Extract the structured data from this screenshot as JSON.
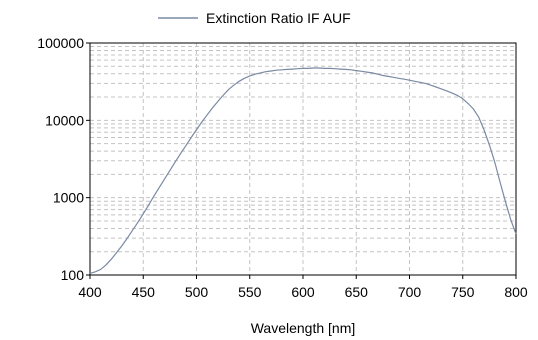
{
  "chart_data": {
    "type": "line",
    "title": "",
    "xlabel": "Wavelength [nm]",
    "ylabel": "",
    "xlim": [
      400,
      800
    ],
    "ylim": [
      100,
      100000
    ],
    "yscale": "log",
    "grid": true,
    "legend_position": "top",
    "x_ticks": [
      "400",
      "450",
      "500",
      "550",
      "600",
      "650",
      "700",
      "750",
      "800"
    ],
    "y_ticks": [
      "100",
      "1000",
      "10000",
      "100000"
    ],
    "series": [
      {
        "name": "Extinction Ratio IF AUF",
        "color": "#7a8aa3",
        "x": [
          400,
          405,
          410,
          415,
          420,
          425,
          430,
          435,
          440,
          445,
          450,
          455,
          460,
          465,
          470,
          475,
          480,
          485,
          490,
          495,
          500,
          505,
          510,
          515,
          520,
          525,
          530,
          535,
          540,
          545,
          550,
          555,
          560,
          565,
          570,
          575,
          580,
          585,
          590,
          595,
          600,
          605,
          610,
          615,
          620,
          625,
          630,
          635,
          640,
          645,
          650,
          655,
          660,
          665,
          670,
          675,
          680,
          685,
          690,
          695,
          700,
          705,
          710,
          715,
          720,
          725,
          730,
          735,
          740,
          745,
          750,
          755,
          760,
          765,
          770,
          775,
          780,
          785,
          790,
          795,
          800
        ],
        "values": [
          105,
          110,
          118,
          135,
          160,
          195,
          240,
          300,
          380,
          480,
          620,
          800,
          1050,
          1350,
          1750,
          2250,
          2900,
          3700,
          4700,
          6000,
          7600,
          9500,
          11800,
          14500,
          17500,
          21000,
          25000,
          28500,
          32000,
          35000,
          37500,
          39500,
          41000,
          42500,
          43500,
          44500,
          45000,
          45500,
          46000,
          46500,
          47000,
          47000,
          47500,
          47500,
          47000,
          47000,
          46500,
          46000,
          45500,
          45000,
          44000,
          43000,
          42000,
          41000,
          39500,
          38000,
          37000,
          36000,
          35000,
          34000,
          33000,
          32000,
          31000,
          30000,
          28500,
          27000,
          25500,
          24000,
          22500,
          21000,
          19000,
          16500,
          14000,
          11000,
          7500,
          4800,
          2900,
          1600,
          900,
          520,
          340
        ]
      }
    ]
  }
}
